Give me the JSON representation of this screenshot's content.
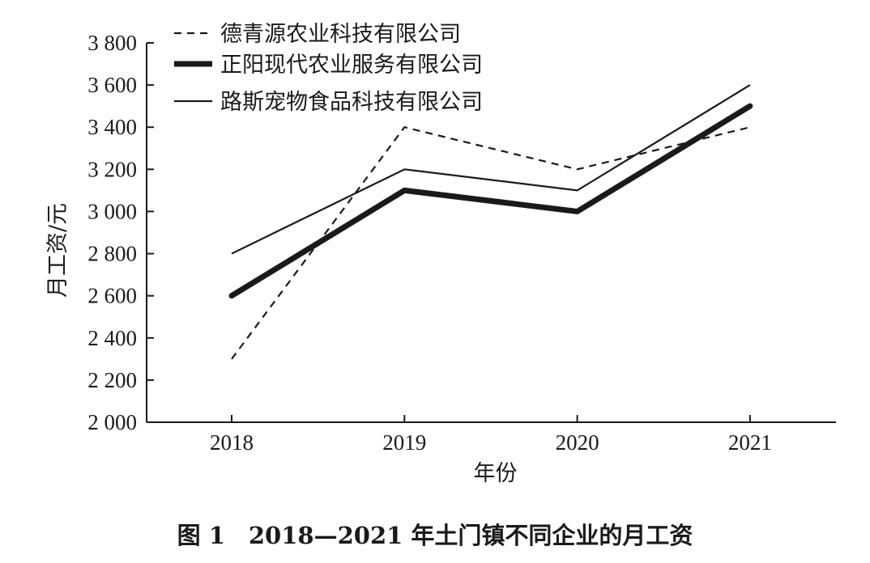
{
  "caption": "图 1　2018—2021 年土门镇不同企业的月工资",
  "chart_data": {
    "type": "line",
    "title": "",
    "xlabel": "年份",
    "ylabel": "月工资/元",
    "categories": [
      "2018",
      "2019",
      "2020",
      "2021"
    ],
    "ylim": [
      2000,
      3800
    ],
    "yticks": [
      2000,
      2200,
      2400,
      2600,
      2800,
      3000,
      3200,
      3400,
      3600,
      3800
    ],
    "ytick_labels": [
      "2 000",
      "2 200",
      "2 400",
      "2 600",
      "2 800",
      "3 000",
      "3 200",
      "3 400",
      "3 600",
      "3 800"
    ],
    "grid": false,
    "legend_position": "top",
    "series": [
      {
        "name": "德青源农业科技有限公司",
        "values": [
          2300,
          3400,
          3200,
          3400
        ],
        "style": "dashed",
        "color": "#1a1a1a"
      },
      {
        "name": "正阳现代农业服务有限公司",
        "values": [
          2600,
          3100,
          3000,
          3500
        ],
        "style": "thick",
        "color": "#1a1a1a"
      },
      {
        "name": "路斯宠物食品科技有限公司",
        "values": [
          2800,
          3200,
          3100,
          3600
        ],
        "style": "thin",
        "color": "#1a1a1a"
      }
    ]
  }
}
